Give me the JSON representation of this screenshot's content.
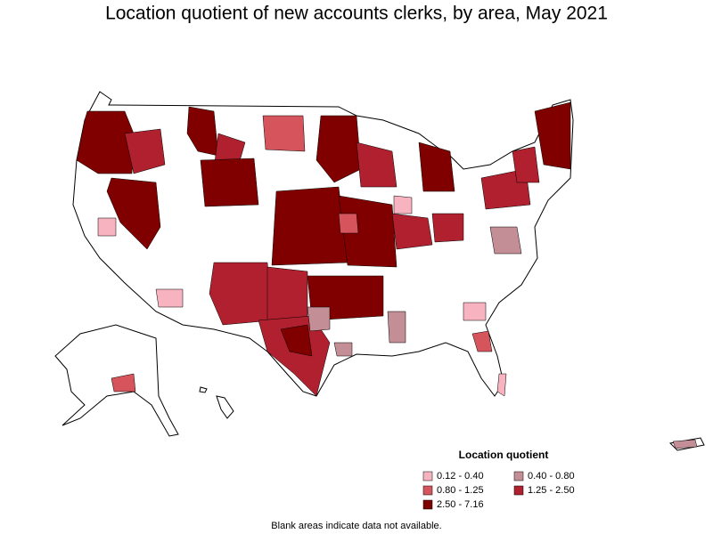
{
  "title": "Location quotient of new accounts clerks, by area, May 2021",
  "legend": {
    "title": "Location quotient",
    "items": [
      {
        "label": "0.12 - 0.40",
        "color": "#f7b3c0"
      },
      {
        "label": "0.40 - 0.80",
        "color": "#c48e96"
      },
      {
        "label": "0.80 - 1.25",
        "color": "#d6555c"
      },
      {
        "label": "1.25 - 2.50",
        "color": "#b0202e"
      },
      {
        "label": "2.50 - 7.16",
        "color": "#800000"
      }
    ]
  },
  "note": "Blank areas indicate data not available."
}
